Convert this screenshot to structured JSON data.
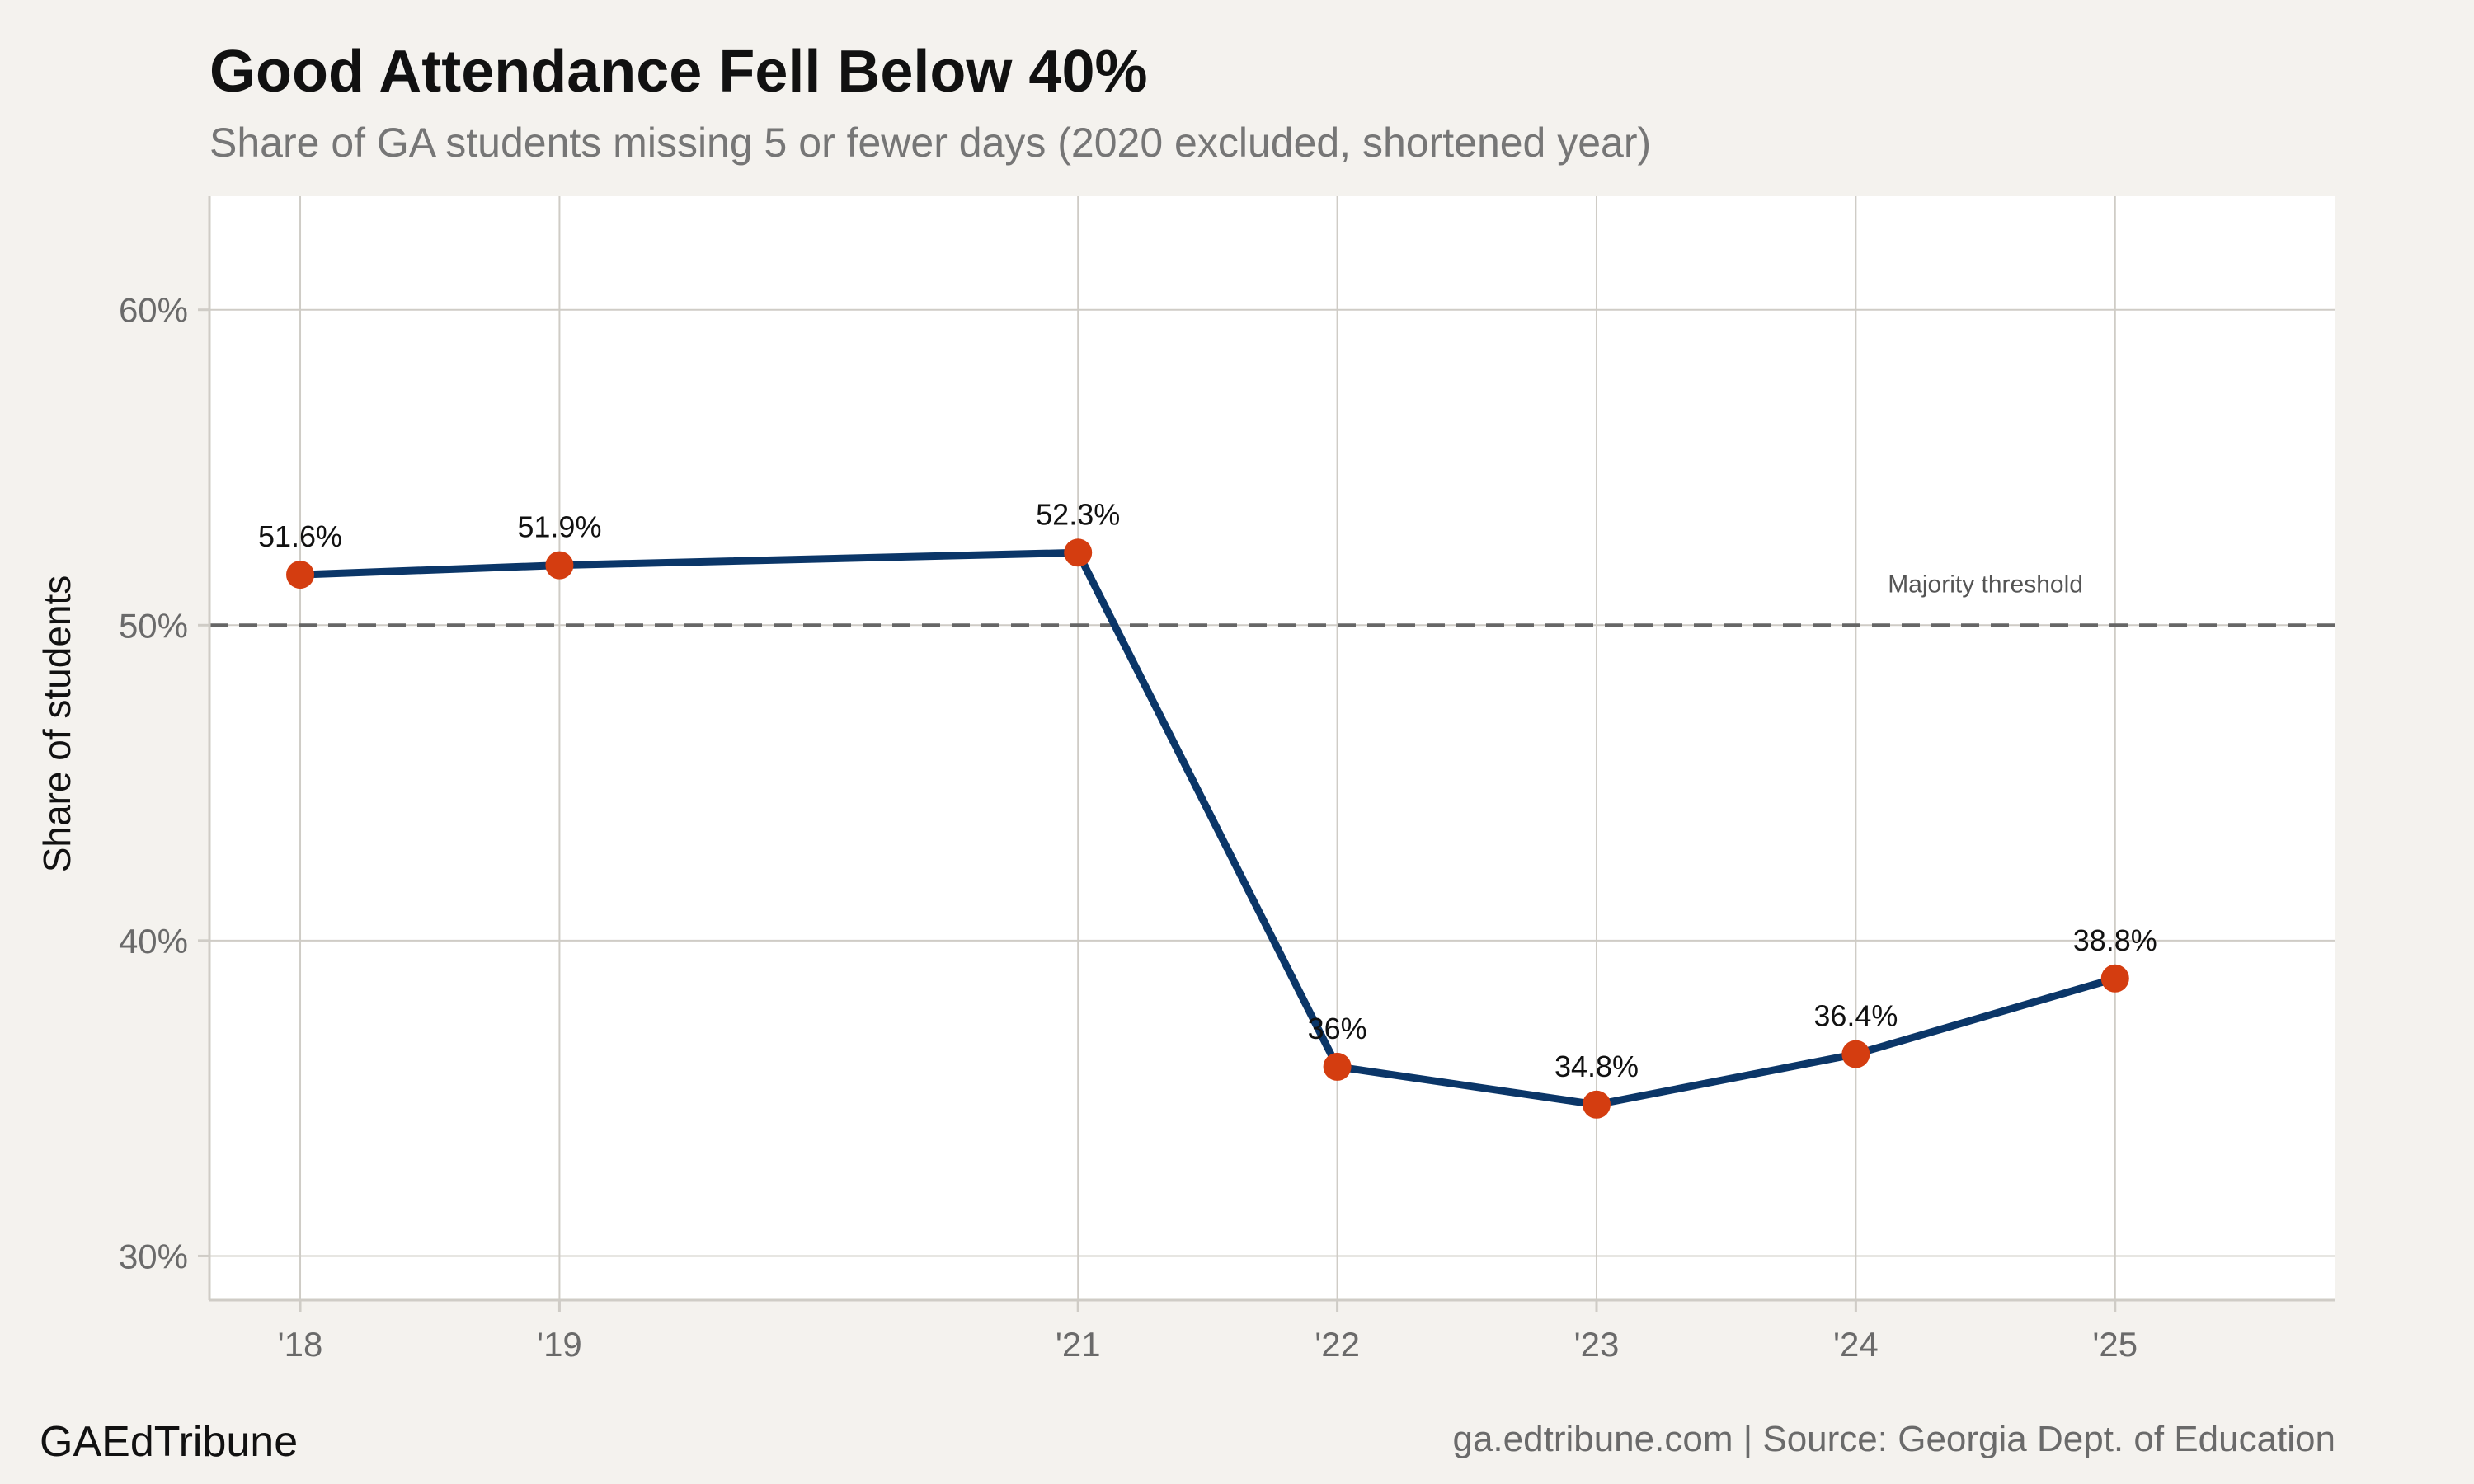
{
  "chart_data": {
    "type": "line",
    "title": "Good Attendance Fell Below 40%",
    "subtitle": "Share of GA students missing 5 or fewer days (2020 excluded, shortened year)",
    "xlabel": "",
    "ylabel": "Share of students",
    "x": [
      2018,
      2019,
      2021,
      2022,
      2023,
      2024,
      2025
    ],
    "x_tick_labels": [
      "'18",
      "'19",
      "'21",
      "'22",
      "'23",
      "'24",
      "'25"
    ],
    "series": [
      {
        "values": [
          51.6,
          51.9,
          52.3,
          36.0,
          34.8,
          36.4,
          38.8
        ],
        "data_labels": [
          "51.6%",
          "51.9%",
          "52.3%",
          "36%",
          "34.8%",
          "36.4%",
          "38.8%"
        ],
        "line_color": "#0b3668",
        "marker_color": "#d43d10"
      }
    ],
    "xlim": [
      2017.65,
      2025.85
    ],
    "ylim": [
      28.6,
      63.6
    ],
    "y_ticks": [
      30,
      40,
      50,
      60
    ],
    "y_tick_labels": [
      "30%",
      "40%",
      "50%",
      "60%"
    ],
    "reference_line": {
      "value": 50,
      "label": "Majority threshold",
      "color": "#666666",
      "style": "dashed"
    },
    "grid": true,
    "legend": "none"
  },
  "footer": {
    "brand": "GAEdTribune",
    "source": "ga.edtribune.com | Source: Georgia Dept. of Education"
  },
  "colors": {
    "background": "#f4f2ee",
    "panel": "#ffffff",
    "grid": "#cfccc6"
  }
}
